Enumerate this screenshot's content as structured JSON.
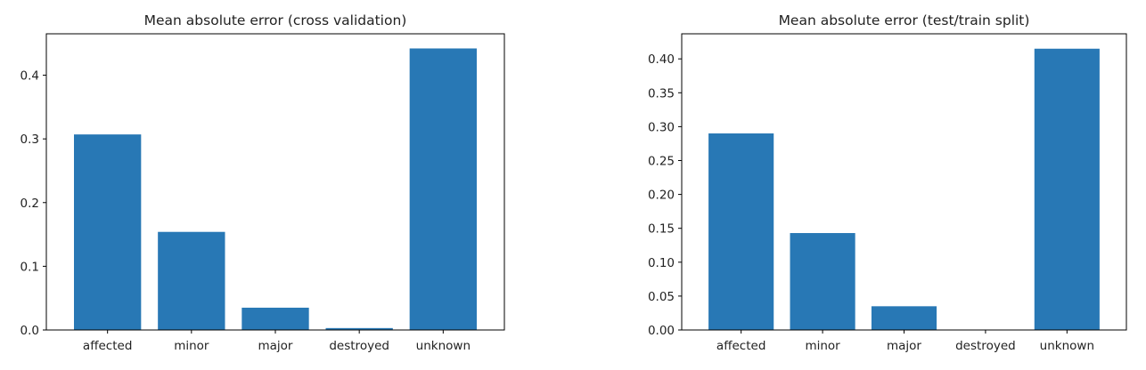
{
  "chart_data": [
    {
      "type": "bar",
      "title": "Mean absolute error (cross validation)",
      "xlabel": "",
      "ylabel": "",
      "categories": [
        "affected",
        "minor",
        "major",
        "destroyed",
        "unknown"
      ],
      "values": [
        0.307,
        0.154,
        0.035,
        0.003,
        0.442
      ],
      "ylim": [
        0,
        0.465
      ],
      "yticks": [
        0.0,
        0.1,
        0.2,
        0.3,
        0.4
      ],
      "ytick_labels": [
        "0.0",
        "0.1",
        "0.2",
        "0.3",
        "0.4"
      ],
      "bar_color": "#2878b5",
      "grid": false,
      "legend": "none"
    },
    {
      "type": "bar",
      "title": "Mean absolute error (test/train split)",
      "xlabel": "",
      "ylabel": "",
      "categories": [
        "affected",
        "minor",
        "major",
        "destroyed",
        "unknown"
      ],
      "values": [
        0.29,
        0.143,
        0.035,
        0.0,
        0.415
      ],
      "ylim": [
        0,
        0.437
      ],
      "yticks": [
        0.0,
        0.05,
        0.1,
        0.15,
        0.2,
        0.25,
        0.3,
        0.35,
        0.4
      ],
      "ytick_labels": [
        "0.00",
        "0.05",
        "0.10",
        "0.15",
        "0.20",
        "0.25",
        "0.30",
        "0.35",
        "0.40"
      ],
      "bar_color": "#2878b5",
      "grid": false,
      "legend": "none"
    }
  ]
}
